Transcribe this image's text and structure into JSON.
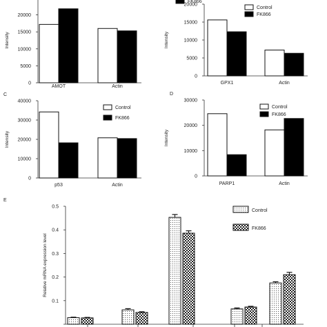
{
  "legend": {
    "control": "Control",
    "fk866": "FK866"
  },
  "chart_data": [
    {
      "panel": "",
      "type": "bar",
      "ylabel": "Intensity",
      "ylim": [
        0,
        25000
      ],
      "yticks": [
        0,
        5000,
        10000,
        15000,
        20000,
        25000
      ],
      "yticks_shown": [
        0,
        5000,
        10000,
        15000,
        20000
      ],
      "categories": [
        "AMOT",
        "Actin"
      ],
      "series": [
        {
          "name": "Control",
          "values": [
            17200,
            16000
          ]
        },
        {
          "name": "FK866",
          "values": [
            21800,
            15300
          ]
        }
      ],
      "legend_position": "top-right"
    },
    {
      "panel": "",
      "type": "bar",
      "ylabel": "Intensity",
      "ylim": [
        0,
        20000
      ],
      "yticks": [
        0,
        5000,
        10000,
        15000,
        20000
      ],
      "categories": [
        "GPX1",
        "Actin"
      ],
      "series": [
        {
          "name": "Control",
          "values": [
            15600,
            7200
          ]
        },
        {
          "name": "FK866",
          "values": [
            12300,
            6300
          ]
        }
      ],
      "legend_position": "top-right"
    },
    {
      "panel": "C",
      "type": "bar",
      "ylabel": "Intensity",
      "ylim": [
        0,
        40000
      ],
      "yticks": [
        0,
        10000,
        20000,
        30000,
        40000
      ],
      "categories": [
        "p53",
        "Actin"
      ],
      "series": [
        {
          "name": "Control",
          "values": [
            34200,
            20800
          ]
        },
        {
          "name": "FK866",
          "values": [
            18200,
            20400
          ]
        }
      ],
      "legend_position": "top-right"
    },
    {
      "panel": "D",
      "type": "bar",
      "ylabel": "Intensity",
      "ylim": [
        0,
        30000
      ],
      "yticks": [
        0,
        10000,
        20000,
        30000
      ],
      "categories": [
        "PARP1",
        "Actin"
      ],
      "series": [
        {
          "name": "Control",
          "values": [
            24600,
            18200
          ]
        },
        {
          "name": "FK866",
          "values": [
            8400,
            22700
          ]
        }
      ],
      "legend_position": "top-right"
    },
    {
      "panel": "E",
      "type": "bar",
      "ylabel": "Relative mRNA expression level",
      "ylim": [
        0,
        0.5
      ],
      "yticks": [
        0.0,
        0.1,
        0.2,
        0.3,
        0.4,
        0.5
      ],
      "yticks_shown": [
        0.1,
        0.2,
        0.3,
        0.4,
        0.5
      ],
      "categories": [
        "",
        "",
        "",
        "",
        ""
      ],
      "series": [
        {
          "name": "Control",
          "values": [
            0.028,
            0.061,
            0.453,
            0.065,
            0.175
          ],
          "errors": [
            0.002,
            0.005,
            0.012,
            0.004,
            0.005
          ]
        },
        {
          "name": "FK866",
          "values": [
            0.027,
            0.05,
            0.386,
            0.073,
            0.21
          ],
          "errors": [
            0.002,
            0.003,
            0.01,
            0.003,
            0.01
          ]
        }
      ],
      "legend_position": "top-right"
    }
  ]
}
